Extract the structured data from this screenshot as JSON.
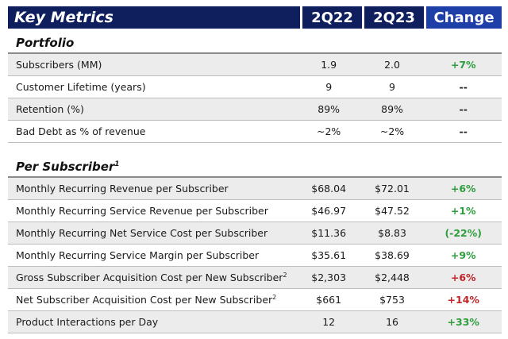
{
  "header": {
    "title": "Key Metrics",
    "col1": "2Q22",
    "col2": "2Q23",
    "col3": "Change"
  },
  "portfolio": {
    "title": "Portfolio",
    "rows": [
      {
        "label": "Subscribers (MM)",
        "v1": "1.9",
        "v2": "2.0",
        "change": "+7%",
        "tone": "pos"
      },
      {
        "label": "Customer Lifetime (years)",
        "v1": "9",
        "v2": "9",
        "change": "--",
        "tone": "neu"
      },
      {
        "label": "Retention (%)",
        "v1": "89%",
        "v2": "89%",
        "change": "--",
        "tone": "neu"
      },
      {
        "label": "Bad Debt as % of revenue",
        "v1": "~2%",
        "v2": "~2%",
        "change": "--",
        "tone": "neu"
      }
    ]
  },
  "per_subscriber": {
    "title": "Per Subscriber",
    "title_sup": "1",
    "rows": [
      {
        "label": "Monthly Recurring Revenue per Subscriber",
        "sup": "",
        "v1": "$68.04",
        "v2": "$72.01",
        "change": "+6%",
        "tone": "pos"
      },
      {
        "label": "Monthly Recurring Service Revenue per Subscriber",
        "sup": "",
        "v1": "$46.97",
        "v2": "$47.52",
        "change": "+1%",
        "tone": "pos"
      },
      {
        "label": "Monthly Recurring Net Service Cost per Subscriber",
        "sup": "",
        "v1": "$11.36",
        "v2": "$8.83",
        "change": "(-22%)",
        "tone": "pos"
      },
      {
        "label": "Monthly Recurring Service Margin per Subscriber",
        "sup": "",
        "v1": "$35.61",
        "v2": "$38.69",
        "change": "+9%",
        "tone": "pos"
      },
      {
        "label": "Gross Subscriber Acquisition Cost per New Subscriber",
        "sup": "2",
        "v1": "$2,303",
        "v2": "$2,448",
        "change": "+6%",
        "tone": "neg"
      },
      {
        "label": "Net Subscriber Acquisition Cost per New Subscriber",
        "sup": "2",
        "v1": "$661",
        "v2": "$753",
        "change": "+14%",
        "tone": "neg"
      },
      {
        "label": "Product Interactions per Day",
        "sup": "",
        "v1": "12",
        "v2": "16",
        "change": "+33%",
        "tone": "pos"
      }
    ]
  }
}
